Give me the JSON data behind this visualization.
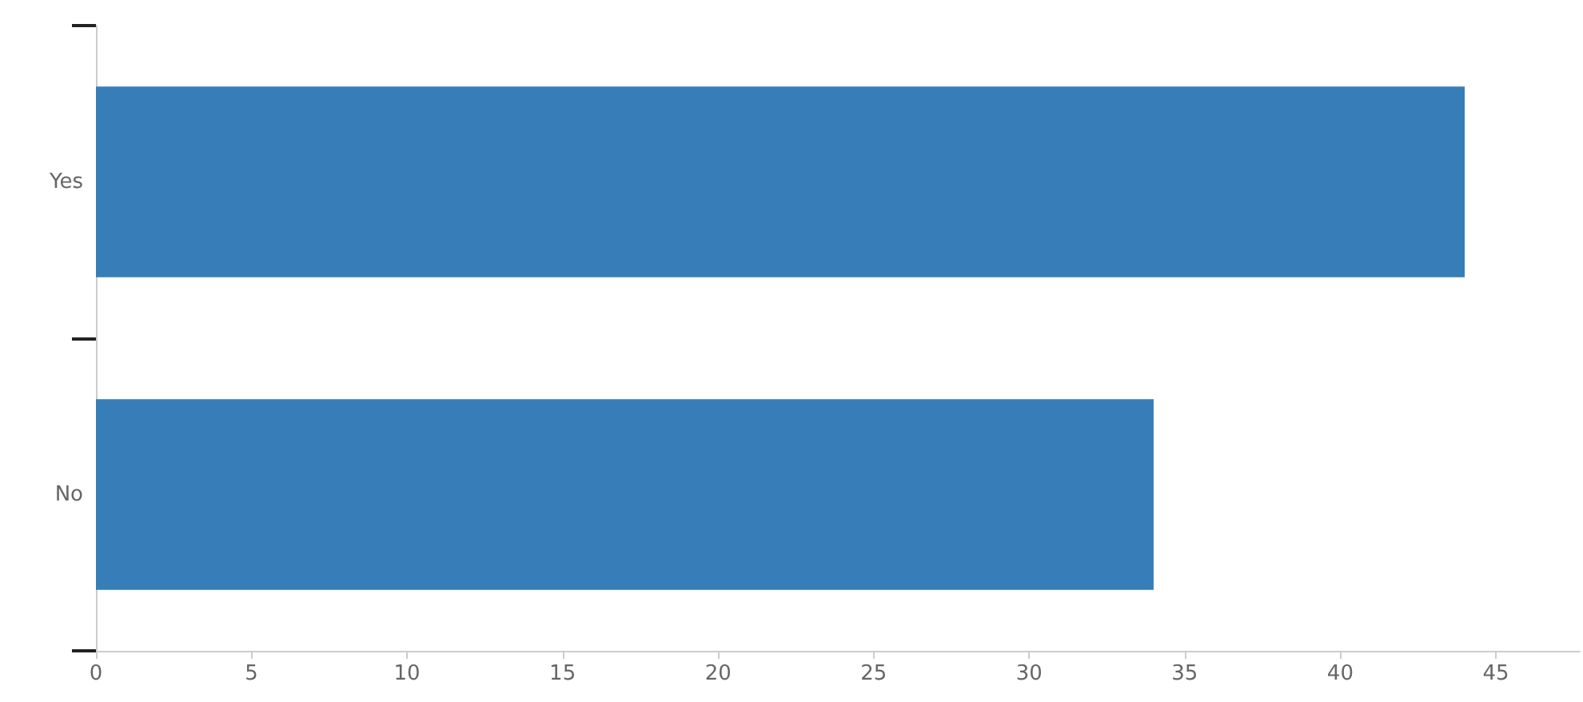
{
  "chart_data": {
    "type": "bar",
    "orientation": "horizontal",
    "categories": [
      "Yes",
      "No"
    ],
    "values": [
      44,
      34
    ],
    "color": "#377eb8",
    "xlim": [
      0,
      47.7
    ],
    "xticks": [
      0,
      5,
      10,
      15,
      20,
      25,
      30,
      35,
      40,
      45
    ]
  }
}
